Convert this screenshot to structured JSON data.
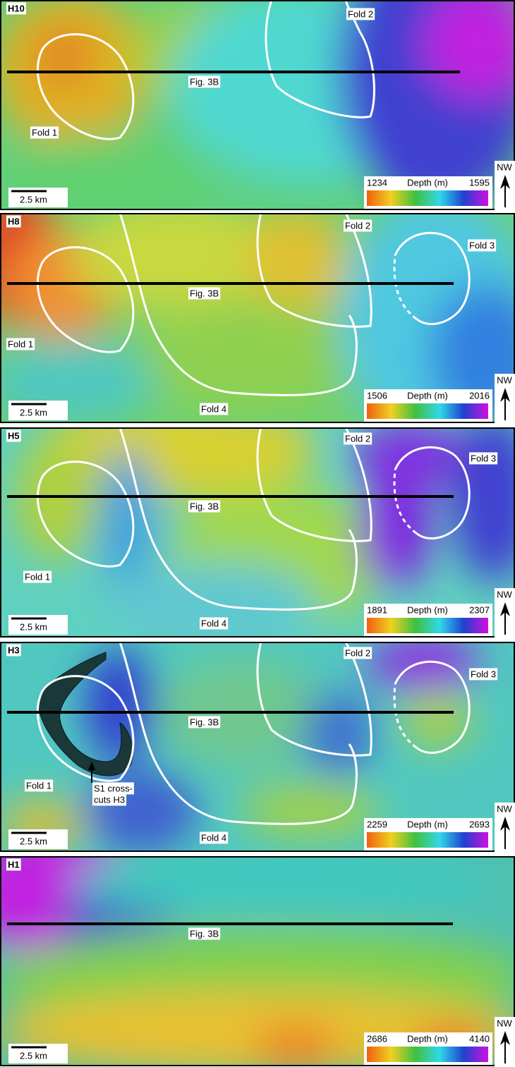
{
  "panels": [
    {
      "horizon": "H10",
      "section": "Fig. 3B",
      "folds": [
        "Fold 1",
        "Fold 2"
      ],
      "scale_bar": "2.5 km",
      "legend": {
        "min": 1234,
        "label": "Depth (m)",
        "max": 1595
      },
      "north": "NW"
    },
    {
      "horizon": "H8",
      "section": "Fig. 3B",
      "folds": [
        "Fold 1",
        "Fold 2",
        "Fold 3",
        "Fold 4"
      ],
      "scale_bar": "2.5 km",
      "legend": {
        "min": 1506,
        "label": "Depth (m)",
        "max": 2016
      },
      "north": "NW"
    },
    {
      "horizon": "H5",
      "section": "Fig. 3B",
      "folds": [
        "Fold 1",
        "Fold 2",
        "Fold 3",
        "Fold 4"
      ],
      "scale_bar": "2.5 km",
      "legend": {
        "min": 1891,
        "label": "Depth (m)",
        "max": 2307
      },
      "north": "NW"
    },
    {
      "horizon": "H3",
      "section": "Fig. 3B",
      "folds": [
        "Fold 1",
        "Fold 2",
        "Fold 3",
        "Fold 4"
      ],
      "scale_bar": "2.5 km",
      "legend": {
        "min": 2259,
        "label": "Depth (m)",
        "max": 2693
      },
      "north": "NW",
      "note": [
        "S1 cross-",
        "cuts H3"
      ]
    },
    {
      "horizon": "H1",
      "section": "Fig. 3B",
      "scale_bar": "2.5 km",
      "legend": {
        "min": 2686,
        "label": "Depth (m)",
        "max": 4140
      },
      "north": "NW"
    }
  ]
}
